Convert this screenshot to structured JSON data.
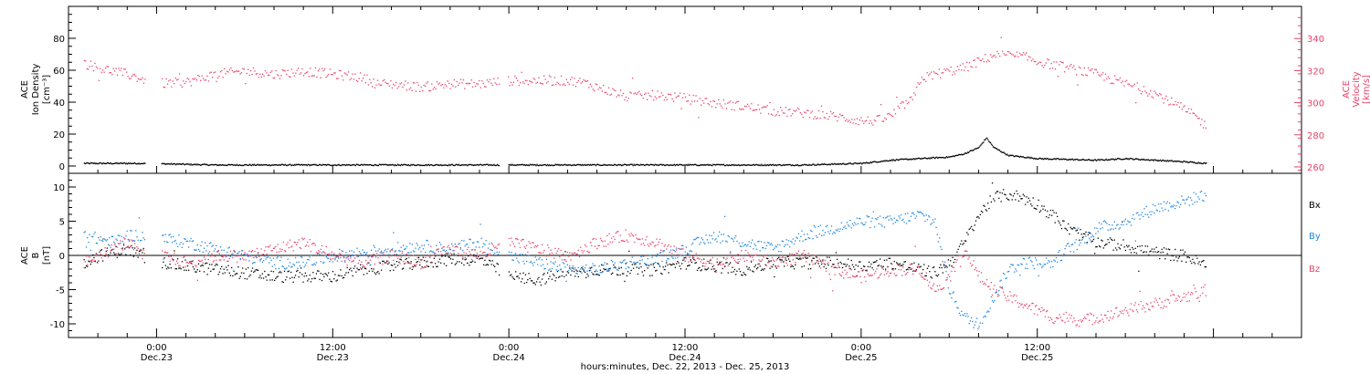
{
  "colors": {
    "density": "#000000",
    "velocity": "#e8436a",
    "bx": "#000000",
    "by": "#1f87e0",
    "bz": "#e8436a"
  },
  "chart_data": [
    {
      "type": "scatter",
      "panel": "top",
      "y_left_label": [
        "ACE",
        "Ion Density",
        "[cm⁻³]"
      ],
      "y_right_label": [
        "ACE",
        "Velocity",
        "[km/s]"
      ],
      "ylim_left": [
        0,
        100
      ],
      "ylim_right": [
        256,
        360
      ],
      "yticks_left": [
        "0",
        "20",
        "40",
        "60",
        "80"
      ],
      "yticks_right": [
        "260",
        "280",
        "300",
        "320",
        "340"
      ],
      "series": [
        {
          "axis": "left",
          "color": "#000000",
          "points": [
            [
              -5,
              2
            ],
            [
              -2,
              2
            ],
            [
              -1,
              2
            ],
            [
              4,
              1
            ],
            [
              8,
              1
            ],
            [
              12,
              1
            ],
            [
              16,
              1
            ],
            [
              20,
              1
            ],
            [
              28,
              1
            ],
            [
              32,
              1
            ],
            [
              36,
              1
            ],
            [
              40,
              1
            ],
            [
              44,
              1
            ],
            [
              48,
              2
            ],
            [
              50,
              4
            ],
            [
              52,
              5
            ],
            [
              54,
              6
            ],
            [
              55,
              8
            ],
            [
              56,
              12
            ],
            [
              56.5,
              18
            ],
            [
              57,
              12
            ],
            [
              58,
              7
            ],
            [
              60,
              5
            ],
            [
              64,
              4
            ],
            [
              66,
              5
            ],
            [
              68,
              4
            ],
            [
              70,
              3
            ],
            [
              71.5,
              2
            ]
          ]
        },
        {
          "axis": "right",
          "color": "#e8436a",
          "points": [
            [
              -5,
              325
            ],
            [
              -4,
              322
            ],
            [
              -3,
              320
            ],
            [
              -2,
              318
            ],
            [
              -1,
              315
            ],
            [
              -0.5,
              312
            ],
            [
              2,
              313
            ],
            [
              4,
              318
            ],
            [
              6,
              320
            ],
            [
              8,
              318
            ],
            [
              10,
              320
            ],
            [
              12,
              318
            ],
            [
              14,
              316
            ],
            [
              15,
              312
            ],
            [
              16,
              312
            ],
            [
              18,
              310
            ],
            [
              20,
              312
            ],
            [
              22,
              312
            ],
            [
              24,
              314
            ],
            [
              26,
              314
            ],
            [
              28,
              314
            ],
            [
              29,
              313
            ],
            [
              32,
              304
            ],
            [
              34,
              305
            ],
            [
              36,
              303
            ],
            [
              38,
              300
            ],
            [
              40,
              298
            ],
            [
              42,
              295
            ],
            [
              44,
              294
            ],
            [
              46,
              292
            ],
            [
              48,
              289
            ],
            [
              49,
              289
            ],
            [
              50,
              292
            ],
            [
              51,
              300
            ],
            [
              51.5,
              302
            ],
            [
              52,
              315
            ],
            [
              53,
              318
            ],
            [
              54,
              320
            ],
            [
              55,
              322
            ],
            [
              56,
              326
            ],
            [
              57,
              330
            ],
            [
              58,
              330
            ],
            [
              59,
              329
            ],
            [
              60,
              326
            ],
            [
              62,
              322
            ],
            [
              64,
              318
            ],
            [
              66,
              312
            ],
            [
              68,
              306
            ],
            [
              70,
              296
            ],
            [
              71,
              290
            ],
            [
              71.5,
              285
            ]
          ]
        }
      ]
    },
    {
      "type": "scatter",
      "panel": "bottom",
      "y_label": [
        "ACE",
        "B",
        "[nT]"
      ],
      "ylim": [
        -12,
        12
      ],
      "yticks": [
        "-10",
        "-5",
        "0",
        "5",
        "10"
      ],
      "xlabel": "hours:minutes, Dec. 22, 2013 - Dec. 25, 2013",
      "xlim": [
        -6,
        78
      ],
      "xticks_major": [
        {
          "x": 0,
          "time": "0:00",
          "day": "Dec.23"
        },
        {
          "x": 12,
          "time": "12:00",
          "day": "Dec.23"
        },
        {
          "x": 24,
          "time": "0:00",
          "day": "Dec.24"
        },
        {
          "x": 36,
          "time": "12:00",
          "day": "Dec.24"
        },
        {
          "x": 48,
          "time": "0:00",
          "day": "Dec.25"
        },
        {
          "x": 60,
          "time": "12:00",
          "day": "Dec.25"
        }
      ],
      "legend": [
        "Bx",
        "By",
        "Bz"
      ],
      "series": [
        {
          "name": "Bx",
          "color": "#000000",
          "points": [
            [
              -5,
              -1
            ],
            [
              -4,
              0
            ],
            [
              -3,
              0.5
            ],
            [
              -2,
              1
            ],
            [
              -1,
              0
            ],
            [
              0.5,
              -1
            ],
            [
              2,
              -1.5
            ],
            [
              4,
              -2
            ],
            [
              6,
              -2.5
            ],
            [
              8,
              -3
            ],
            [
              10,
              -3
            ],
            [
              12,
              -3
            ],
            [
              14,
              -2
            ],
            [
              16,
              -1.5
            ],
            [
              18,
              -1
            ],
            [
              20,
              -0.5
            ],
            [
              22,
              -0.5
            ],
            [
              24,
              -3
            ],
            [
              26,
              -3.5
            ],
            [
              28,
              -2.5
            ],
            [
              30,
              -2
            ],
            [
              32,
              -2
            ],
            [
              34,
              -2
            ],
            [
              36,
              -1
            ],
            [
              38,
              -1.5
            ],
            [
              40,
              -2
            ],
            [
              42,
              -1
            ],
            [
              44,
              -1
            ],
            [
              46,
              -1
            ],
            [
              48,
              -1.5
            ],
            [
              50,
              -1
            ],
            [
              52,
              -2
            ],
            [
              53,
              -2.5
            ],
            [
              54,
              -1
            ],
            [
              55,
              2
            ],
            [
              56,
              6
            ],
            [
              57,
              8.5
            ],
            [
              58,
              9
            ],
            [
              59,
              8.5
            ],
            [
              60,
              7.5
            ],
            [
              61,
              6
            ],
            [
              62,
              4
            ],
            [
              63,
              3
            ],
            [
              64,
              2
            ],
            [
              66,
              1.5
            ],
            [
              68,
              0.5
            ],
            [
              70,
              0
            ],
            [
              71.5,
              -1.5
            ]
          ]
        },
        {
          "name": "By",
          "color": "#1f87e0",
          "points": [
            [
              -5,
              3
            ],
            [
              -4,
              2.5
            ],
            [
              -3,
              2
            ],
            [
              -2,
              3
            ],
            [
              -1,
              3
            ],
            [
              0.5,
              2.5
            ],
            [
              2,
              2
            ],
            [
              4,
              1
            ],
            [
              6,
              0
            ],
            [
              8,
              -1
            ],
            [
              10,
              -1
            ],
            [
              12,
              0
            ],
            [
              14,
              0.5
            ],
            [
              16,
              1
            ],
            [
              18,
              1.5
            ],
            [
              20,
              1
            ],
            [
              22,
              2
            ],
            [
              24,
              0
            ],
            [
              26,
              -1
            ],
            [
              28,
              -2
            ],
            [
              30,
              -2
            ],
            [
              32,
              -1
            ],
            [
              34,
              -0.5
            ],
            [
              36,
              1
            ],
            [
              38,
              3
            ],
            [
              40,
              2
            ],
            [
              42,
              1
            ],
            [
              44,
              3
            ],
            [
              46,
              4
            ],
            [
              48,
              5
            ],
            [
              50,
              5
            ],
            [
              52,
              6
            ],
            [
              53,
              5
            ],
            [
              54,
              -5
            ],
            [
              55,
              -9
            ],
            [
              56,
              -10
            ],
            [
              57,
              -6
            ],
            [
              58,
              -2
            ],
            [
              59,
              -1
            ],
            [
              60,
              -1
            ],
            [
              61,
              -1
            ],
            [
              62,
              1
            ],
            [
              63,
              2
            ],
            [
              64,
              4
            ],
            [
              66,
              5
            ],
            [
              68,
              7
            ],
            [
              70,
              8
            ],
            [
              71.5,
              9
            ]
          ]
        },
        {
          "name": "Bz",
          "color": "#e8436a",
          "points": [
            [
              -5,
              -1
            ],
            [
              -4,
              0
            ],
            [
              -3,
              1
            ],
            [
              -2,
              2
            ],
            [
              -1,
              0
            ],
            [
              0.5,
              0
            ],
            [
              2,
              -1
            ],
            [
              4,
              0
            ],
            [
              6,
              0
            ],
            [
              8,
              1
            ],
            [
              10,
              2
            ],
            [
              12,
              0
            ],
            [
              14,
              -1
            ],
            [
              16,
              0
            ],
            [
              18,
              -1
            ],
            [
              20,
              1
            ],
            [
              22,
              0
            ],
            [
              24,
              2
            ],
            [
              26,
              1
            ],
            [
              28,
              0
            ],
            [
              30,
              2
            ],
            [
              32,
              3
            ],
            [
              34,
              2
            ],
            [
              36,
              0
            ],
            [
              38,
              -1
            ],
            [
              40,
              0
            ],
            [
              42,
              -1
            ],
            [
              44,
              0
            ],
            [
              46,
              -2
            ],
            [
              48,
              -3
            ],
            [
              50,
              -2
            ],
            [
              52,
              -2
            ],
            [
              53,
              -5
            ],
            [
              54,
              -3
            ],
            [
              55,
              1
            ],
            [
              56,
              -3
            ],
            [
              57,
              -5
            ],
            [
              58,
              -6
            ],
            [
              59,
              -7
            ],
            [
              60,
              -8
            ],
            [
              61,
              -9
            ],
            [
              62,
              -9
            ],
            [
              63,
              -9.5
            ],
            [
              64,
              -9
            ],
            [
              66,
              -8
            ],
            [
              68,
              -7
            ],
            [
              70,
              -6
            ],
            [
              71.5,
              -5
            ]
          ]
        }
      ]
    }
  ]
}
